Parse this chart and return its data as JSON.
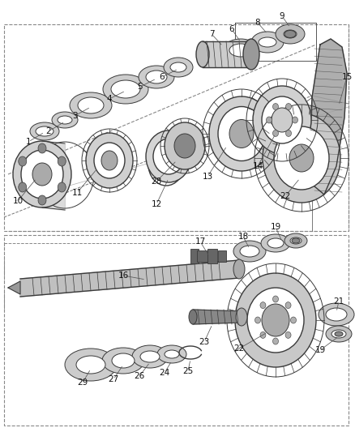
{
  "bg_color": "#ffffff",
  "gray": "#3a3a3a",
  "lgray": "#aaaaaa",
  "mgray": "#888888",
  "dgray": "#555555"
}
